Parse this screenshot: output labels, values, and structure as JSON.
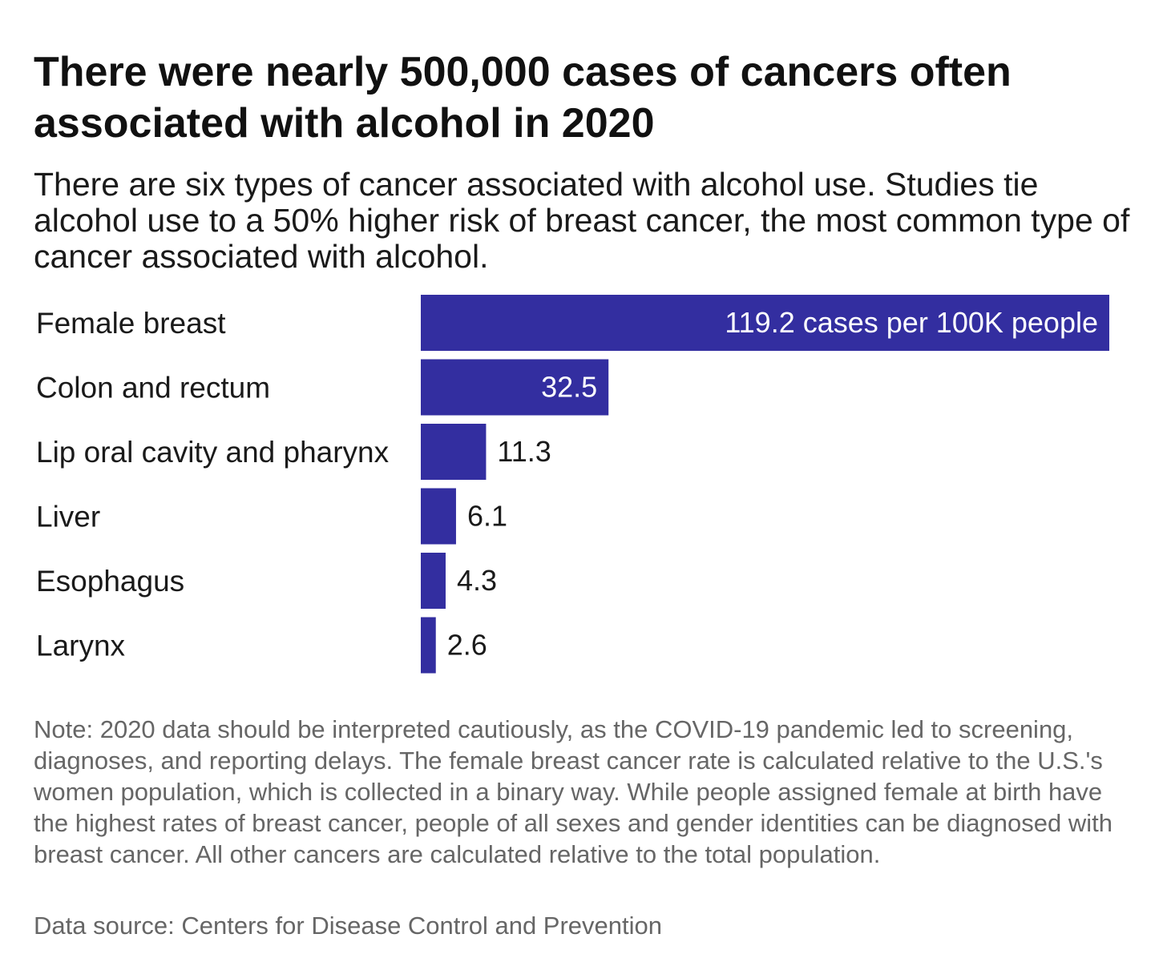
{
  "header": {
    "title": "There were nearly 500,000 cases of cancers often associated with alcohol in 2020",
    "subtitle": "There are six types of cancer associated with alcohol use. Studies tie alcohol use to a 50% higher risk of breast cancer, the most common type of cancer associated with alcohol."
  },
  "chart_data": {
    "type": "bar",
    "orientation": "horizontal",
    "title": "There were nearly 500,000 cases of cancers often associated with alcohol in 2020",
    "categories": [
      "Female breast",
      "Colon and rectum",
      "Lip oral cavity and pharynx",
      "Liver",
      "Esophagus",
      "Larynx"
    ],
    "values": [
      119.2,
      32.5,
      11.3,
      6.1,
      4.3,
      2.6
    ],
    "value_labels": [
      "119.2 cases per 100K people",
      "32.5",
      "11.3",
      "6.1",
      "4.3",
      "2.6"
    ],
    "xlabel": "",
    "ylabel": "",
    "xlim": [
      0,
      119.2
    ],
    "grid": false,
    "legend": "none",
    "bar_color": "#332ea0",
    "label_inside_color": "#ffffff",
    "label_outside_color": "#1a1a1a"
  },
  "footer": {
    "note": "Note: 2020 data should be interpreted cautiously, as the COVID-19 pandemic led to screening, diagnoses, and reporting delays. The female breast cancer rate is calculated relative to the U.S.'s women population, which is collected in a binary way. While people assigned female at birth have the highest rates of breast cancer, people of all sexes and gender identities can be diagnosed with breast cancer. All other cancers are calculated relative to the total population.",
    "source": "Data source: Centers for Disease Control and Prevention"
  }
}
